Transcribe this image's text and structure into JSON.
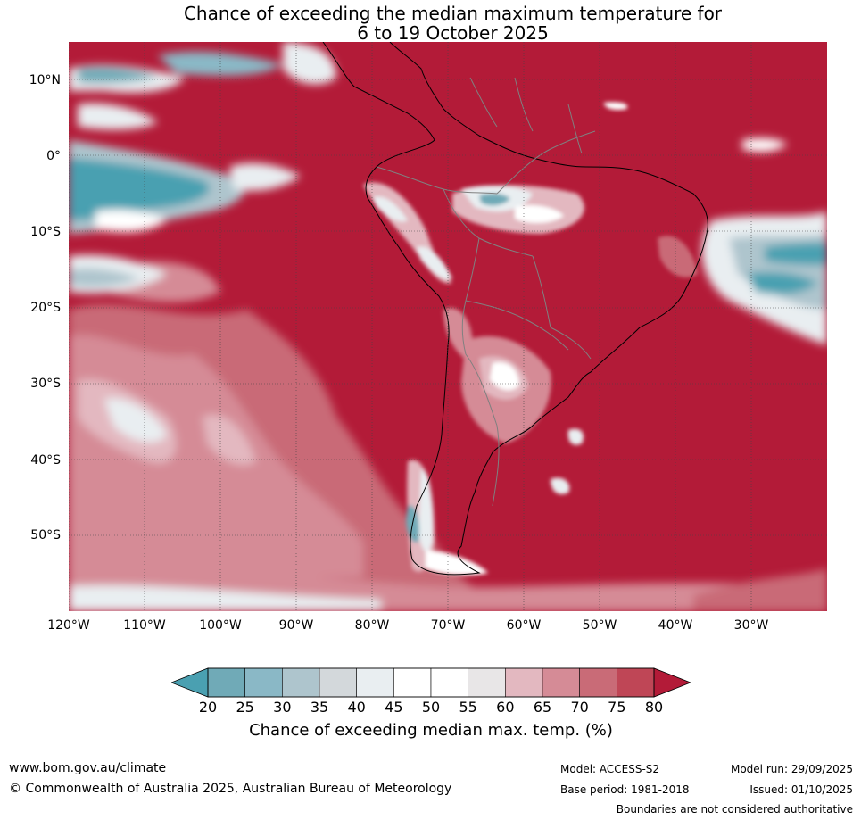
{
  "title": {
    "line1": "Chance of exceeding the median maximum temperature for",
    "line2": "6 to 19 October 2025"
  },
  "map": {
    "lat_ticks": [
      "10°N",
      "0°",
      "10°S",
      "20°S",
      "30°S",
      "40°S",
      "50°S"
    ],
    "lon_ticks": [
      "120°W",
      "110°W",
      "100°W",
      "90°W",
      "80°W",
      "70°W",
      "60°W",
      "50°W",
      "40°W",
      "30°W"
    ],
    "dominant_color": "#b31b38"
  },
  "legend": {
    "ticks": [
      "20",
      "25",
      "30",
      "35",
      "40",
      "45",
      "50",
      "55",
      "60",
      "65",
      "70",
      "75",
      "80"
    ],
    "colors": [
      "#4aa0b1",
      "#70aab7",
      "#8ab8c6",
      "#aec5cd",
      "#d3d8db",
      "#e9eef1",
      "#ffffff",
      "#ffffff",
      "#e8e6e7",
      "#e3b8c0",
      "#d58b96",
      "#c96b77",
      "#bf4656",
      "#b31b38"
    ],
    "label": "Chance of exceeding median max. temp. (%)"
  },
  "footer": {
    "website": "www.bom.gov.au/climate",
    "copyright": "© Commonwealth of Australia 2025, Australian Bureau of Meteorology",
    "model": "Model: ACCESS-S2",
    "base_period": "Base period: 1981-2018",
    "model_run": "Model run: 29/09/2025",
    "issued": "Issued: 01/10/2025",
    "disclaimer": "Boundaries are not considered authoritative"
  }
}
